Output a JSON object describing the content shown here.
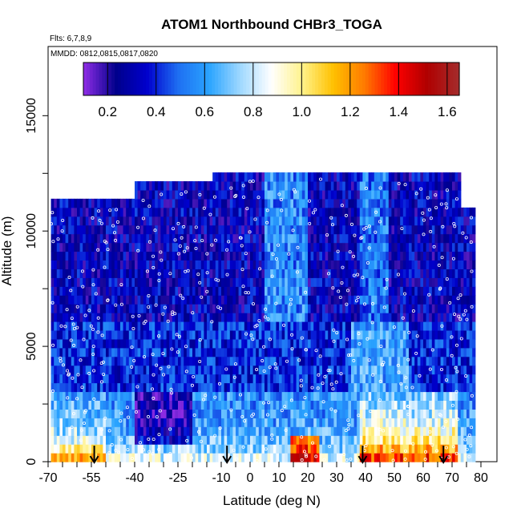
{
  "chart_data": {
    "type": "heatmap",
    "title": "ATOM1 Northbound CHBr3_TOGA",
    "flights_note": "Flts: 6,7,8,9",
    "dates_note": "MMDD: 0812,0815,0817,0820",
    "xlabel": "Latitude (deg N)",
    "ylabel": "Altitude (m)",
    "xlim": [
      -70,
      80
    ],
    "ylim": [
      0,
      18000
    ],
    "x_ticks": [
      "-70",
      "-55",
      "-40",
      "-25",
      "-10",
      "0",
      "10",
      "20",
      "30",
      "40",
      "50",
      "60",
      "70",
      "80"
    ],
    "x_tick_values": [
      -70,
      -55,
      -40,
      -25,
      -10,
      0,
      10,
      20,
      30,
      40,
      50,
      60,
      70,
      80
    ],
    "y_ticks": [
      "0",
      "5000",
      "10000",
      "15000"
    ],
    "y_tick_values": [
      0,
      5000,
      10000,
      15000
    ],
    "colorbar": {
      "range": [
        0.1,
        1.65
      ],
      "tick_labels": [
        "0.2",
        "0.4",
        "0.6",
        "0.8",
        "1.0",
        "1.2",
        "1.4",
        "1.6"
      ],
      "tick_values": [
        0.2,
        0.4,
        0.6,
        0.8,
        1.0,
        1.2,
        1.4,
        1.6
      ],
      "colors": [
        "#8a2be2",
        "#00008b",
        "#0000cd",
        "#1e6ff2",
        "#2aa4ff",
        "#9fd8ff",
        "#ffffff",
        "#fff28a",
        "#ffc000",
        "#ff7a00",
        "#ff0000",
        "#b00000",
        "#a52a2a"
      ]
    },
    "profile_arrows_lat": [
      -54,
      -8,
      39,
      67
    ],
    "grid": false
  }
}
